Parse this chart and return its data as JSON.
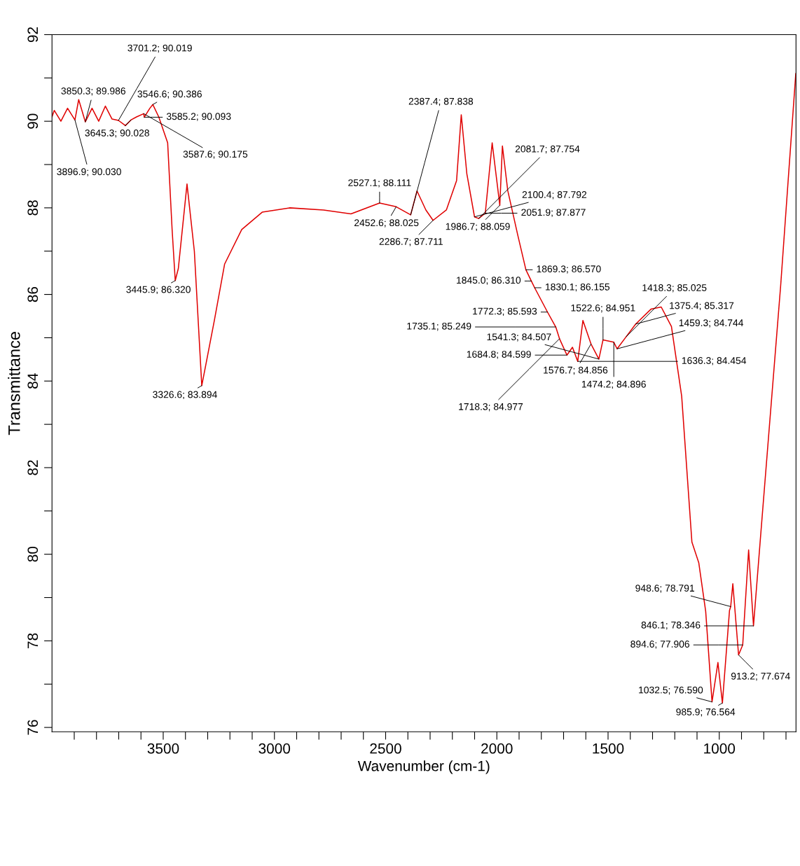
{
  "chart_data": {
    "type": "line",
    "xlabel": "Wavenumber (cm-1)",
    "ylabel": "Transmittance",
    "x": [
      4000,
      3990,
      3960,
      3930,
      3896.9,
      3880,
      3850.3,
      3820,
      3790,
      3760,
      3730,
      3701.2,
      3670,
      3645.3,
      3620,
      3587.6,
      3585.2,
      3560,
      3546.6,
      3520,
      3480,
      3460,
      3445.9,
      3432,
      3393,
      3360,
      3326.6,
      3300,
      3270,
      3224,
      3147,
      3055,
      2932,
      2779,
      2656,
      2527.1,
      2452.6,
      2387.4,
      2359,
      2319,
      2286.7,
      2227,
      2181,
      2160,
      2135,
      2100.4,
      2081.7,
      2051.9,
      2021,
      1986.7,
      1975,
      1951,
      1905,
      1869.3,
      1845.0,
      1830.1,
      1772.3,
      1735.1,
      1718.3,
      1684.8,
      1660,
      1636.3,
      1613,
      1576.7,
      1541.3,
      1522.6,
      1474.2,
      1459.3,
      1418.3,
      1375.4,
      1307,
      1261,
      1215,
      1169,
      1123,
      1092,
      1061,
      1032.5,
      1006,
      985.9,
      954,
      948.6,
      939,
      913.2,
      894.6,
      868,
      846.1,
      816,
      724,
      656
    ],
    "series": [
      {
        "color": "#e00000",
        "values": [
          90.1,
          90.25,
          90.0,
          90.3,
          90.03,
          90.5,
          89.986,
          90.3,
          90.0,
          90.35,
          90.05,
          90.019,
          89.9,
          90.028,
          90.1,
          90.175,
          90.093,
          90.3,
          90.386,
          90.1,
          89.5,
          87.5,
          86.32,
          86.6,
          88.55,
          87.0,
          83.894,
          84.6,
          85.4,
          86.7,
          87.5,
          87.9,
          88.0,
          87.95,
          87.86,
          88.111,
          88.025,
          87.838,
          88.39,
          87.95,
          87.711,
          87.95,
          88.63,
          90.15,
          88.79,
          87.792,
          87.754,
          87.877,
          89.5,
          88.059,
          89.43,
          88.4,
          87.35,
          86.57,
          86.31,
          86.155,
          85.593,
          85.249,
          84.977,
          84.599,
          84.78,
          84.454,
          85.4,
          84.856,
          84.507,
          84.951,
          84.896,
          84.744,
          85.025,
          85.317,
          85.66,
          85.71,
          85.26,
          83.65,
          80.28,
          79.8,
          78.68,
          76.59,
          77.5,
          76.564,
          78.7,
          78.791,
          79.32,
          77.674,
          77.906,
          80.1,
          78.346,
          80.3,
          86.2,
          91.1
        ]
      }
    ],
    "xlim": [
      4000,
      655
    ],
    "ylim": [
      75.9,
      92
    ],
    "xticks": [
      {
        "value": 3900,
        "label": null
      },
      {
        "value": 3800,
        "label": null
      },
      {
        "value": 3700,
        "label": null
      },
      {
        "value": 3600,
        "label": null
      },
      3500,
      {
        "value": 3400,
        "label": null
      },
      {
        "value": 3300,
        "label": null
      },
      {
        "value": 3200,
        "label": null
      },
      {
        "value": 3100,
        "label": null
      },
      3000,
      {
        "value": 2900,
        "label": null
      },
      {
        "value": 2800,
        "label": null
      },
      {
        "value": 2700,
        "label": null
      },
      {
        "value": 2600,
        "label": null
      },
      2500,
      {
        "value": 2400,
        "label": null
      },
      {
        "value": 2300,
        "label": null
      },
      {
        "value": 2200,
        "label": null
      },
      {
        "value": 2100,
        "label": null
      },
      2000,
      {
        "value": 1900,
        "label": null
      },
      {
        "value": 1800,
        "label": null
      },
      {
        "value": 1700,
        "label": null
      },
      {
        "value": 1600,
        "label": null
      },
      1500,
      {
        "value": 1400,
        "label": null
      },
      {
        "value": 1300,
        "label": null
      },
      {
        "value": 1200,
        "label": null
      },
      {
        "value": 1100,
        "label": null
      },
      1000,
      {
        "value": 900,
        "label": null
      },
      {
        "value": 800,
        "label": null
      },
      {
        "value": 700,
        "label": null
      }
    ],
    "yticks": [
      76,
      {
        "value": 77,
        "label": null
      },
      78,
      {
        "value": 79,
        "label": null
      },
      80,
      {
        "value": 81,
        "label": null
      },
      82,
      {
        "value": 83,
        "label": null
      },
      84,
      {
        "value": 85,
        "label": null
      },
      86,
      {
        "value": 87,
        "label": null
      },
      88,
      {
        "value": 89,
        "label": null
      },
      90,
      {
        "value": 91,
        "label": null
      },
      92
    ],
    "grid": false,
    "legend": false,
    "annotations": [
      {
        "text": "3645.3; 90.028",
        "x": 3645.3,
        "y": 90.028
      },
      {
        "text": "3546.6; 90.386",
        "x": 3546.6,
        "y": 90.386
      },
      {
        "text": "3850.3; 89.986",
        "x": 3850.3,
        "y": 89.986
      },
      {
        "text": "3585.2; 90.093",
        "x": 3585.2,
        "y": 90.093
      },
      {
        "text": "3587.6; 90.175",
        "x": 3587.6,
        "y": 90.175
      },
      {
        "text": "3896.9; 90.030",
        "x": 3896.9,
        "y": 90.03
      },
      {
        "text": "3701.2; 90.019",
        "x": 3701.2,
        "y": 90.019
      },
      {
        "text": "3445.9; 86.320",
        "x": 3445.9,
        "y": 86.32
      },
      {
        "text": "3326.6; 83.894",
        "x": 3326.6,
        "y": 83.894
      },
      {
        "text": "2527.1; 88.111",
        "x": 2527.1,
        "y": 88.111
      },
      {
        "text": "2452.6; 88.025",
        "x": 2452.6,
        "y": 88.025
      },
      {
        "text": "1986.7; 88.059",
        "x": 1986.7,
        "y": 88.059
      },
      {
        "text": "2051.9; 87.877",
        "x": 2051.9,
        "y": 87.877
      },
      {
        "text": "2100.4; 87.792",
        "x": 2100.4,
        "y": 87.792
      },
      {
        "text": "2387.4; 87.838",
        "x": 2387.4,
        "y": 87.838
      },
      {
        "text": "2081.7; 87.754",
        "x": 2081.7,
        "y": 87.754
      },
      {
        "text": "2286.7; 87.711",
        "x": 2286.7,
        "y": 87.711
      },
      {
        "text": "1869.3; 86.570",
        "x": 1869.3,
        "y": 86.57
      },
      {
        "text": "1845.0; 86.310",
        "x": 1845.0,
        "y": 86.31
      },
      {
        "text": "1522.6; 84.951",
        "x": 1522.6,
        "y": 84.951
      },
      {
        "text": "1576.7; 84.856",
        "x": 1576.7,
        "y": 84.856
      },
      {
        "text": "1830.1; 86.155",
        "x": 1830.1,
        "y": 86.155
      },
      {
        "text": "1474.2; 84.896",
        "x": 1474.2,
        "y": 84.896
      },
      {
        "text": "1772.3; 85.593",
        "x": 1772.3,
        "y": 85.593
      },
      {
        "text": "1541.3; 84.507",
        "x": 1541.3,
        "y": 84.507
      },
      {
        "text": "1735.1; 85.249",
        "x": 1735.1,
        "y": 85.249
      },
      {
        "text": "1718.3; 84.977",
        "x": 1718.3,
        "y": 84.977
      },
      {
        "text": "1418.3; 85.025",
        "x": 1418.3,
        "y": 85.025
      },
      {
        "text": "1684.8; 84.599",
        "x": 1684.8,
        "y": 84.599
      },
      {
        "text": "1636.3; 84.454",
        "x": 1636.3,
        "y": 84.454
      },
      {
        "text": "1375.4; 85.317",
        "x": 1375.4,
        "y": 85.317
      },
      {
        "text": "1459.3; 84.744",
        "x": 1459.3,
        "y": 84.744
      },
      {
        "text": "846.1; 78.346",
        "x": 846.1,
        "y": 78.346
      },
      {
        "text": "948.6; 78.791",
        "x": 948.6,
        "y": 78.791
      },
      {
        "text": "913.2; 77.674",
        "x": 913.2,
        "y": 77.674
      },
      {
        "text": "985.9; 76.564",
        "x": 985.9,
        "y": 76.564
      },
      {
        "text": "1032.5; 76.590",
        "x": 1032.5,
        "y": 76.59
      },
      {
        "text": "894.6; 77.906",
        "x": 894.6,
        "y": 77.906
      }
    ]
  }
}
